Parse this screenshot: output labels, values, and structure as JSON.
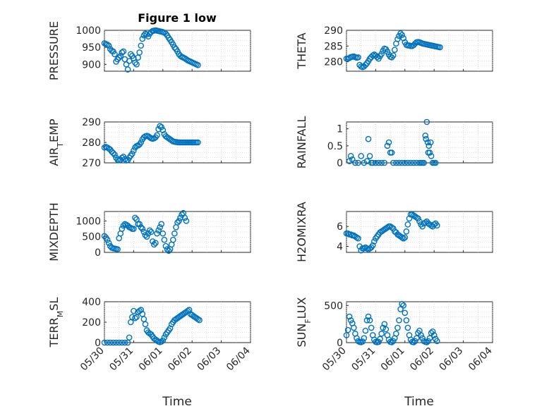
{
  "figure_title": "Figure 1 low",
  "accent_color": "#0072bd",
  "chart_data": [
    {
      "type": "scatter",
      "ylabel": "PRESSURE",
      "ylim": [
        880,
        1000
      ],
      "yticks": [
        900,
        950,
        1000
      ],
      "x": [
        0,
        0.05,
        0.1,
        0.15,
        0.2,
        0.25,
        0.3,
        0.35,
        0.4,
        0.45,
        0.5,
        0.55,
        0.6,
        0.65,
        0.7,
        0.75,
        0.8,
        0.85,
        0.9,
        0.95,
        1,
        1.05,
        1.1,
        1.15,
        1.2,
        1.25,
        1.3,
        1.35,
        1.4,
        1.45,
        1.5,
        1.55,
        1.6,
        1.65,
        1.7,
        1.75,
        1.8,
        1.85,
        1.9,
        1.95,
        2,
        2.05,
        2.1,
        2.15,
        2.2,
        2.25,
        2.3,
        2.35,
        2.4,
        2.45,
        2.5,
        2.55,
        2.6,
        2.65,
        2.7,
        2.75,
        2.8,
        2.85,
        2.9,
        2.95,
        3,
        3.05,
        3.1,
        3.15,
        3.2
      ],
      "y": [
        962,
        960,
        958,
        955,
        945,
        940,
        938,
        930,
        908,
        915,
        920,
        925,
        935,
        938,
        915,
        900,
        885,
        910,
        930,
        925,
        918,
        905,
        900,
        920,
        935,
        955,
        975,
        985,
        990,
        988,
        982,
        990,
        995,
        998,
        999,
        1000,
        999,
        998,
        997,
        996,
        995,
        993,
        990,
        985,
        978,
        972,
        965,
        958,
        950,
        945,
        938,
        930,
        925,
        922,
        920,
        918,
        915,
        912,
        910,
        908,
        906,
        904,
        902,
        900,
        898
      ]
    },
    {
      "type": "scatter",
      "ylabel": "THETA",
      "ylim": [
        277,
        290
      ],
      "yticks": [
        280,
        285,
        290
      ],
      "x": [
        0,
        0.05,
        0.1,
        0.15,
        0.2,
        0.25,
        0.3,
        0.35,
        0.4,
        0.45,
        0.5,
        0.55,
        0.6,
        0.65,
        0.7,
        0.75,
        0.8,
        0.85,
        0.9,
        0.95,
        1,
        1.05,
        1.1,
        1.15,
        1.2,
        1.25,
        1.3,
        1.35,
        1.4,
        1.45,
        1.5,
        1.55,
        1.6,
        1.65,
        1.7,
        1.75,
        1.8,
        1.85,
        1.9,
        1.95,
        2,
        2.05,
        2.1,
        2.15,
        2.2,
        2.25,
        2.3,
        2.35,
        2.4,
        2.45,
        2.5,
        2.55,
        2.6,
        2.65,
        2.7,
        2.75,
        2.8,
        2.85,
        2.9,
        2.95,
        3,
        3.05,
        3.1,
        3.15,
        3.2
      ],
      "y": [
        281,
        281,
        281.2,
        281.5,
        281.6,
        281.7,
        281.5,
        281.3,
        281.4,
        279,
        278.5,
        278.3,
        278.5,
        279,
        279.5,
        280.2,
        281,
        281.5,
        282,
        282.3,
        282,
        281.5,
        281,
        281.8,
        282.5,
        283.5,
        284.2,
        284,
        283.2,
        282.3,
        281.6,
        281.4,
        282,
        283.8,
        285.8,
        287.2,
        288.2,
        289,
        288.5,
        287.5,
        286.2,
        285.4,
        285.2,
        285.2,
        285,
        285,
        285.3,
        285.8,
        286.2,
        286.3,
        286.2,
        286,
        285.8,
        285.7,
        285.6,
        285.5,
        285.4,
        285.3,
        285.2,
        285.1,
        285,
        284.9,
        284.8,
        284.7,
        284.6
      ]
    },
    {
      "type": "scatter",
      "ylabel": "AIR_TEMP",
      "ylim": [
        270,
        290
      ],
      "yticks": [
        270,
        280,
        290
      ],
      "x": [
        0,
        0.05,
        0.1,
        0.15,
        0.2,
        0.25,
        0.3,
        0.35,
        0.4,
        0.45,
        0.5,
        0.55,
        0.6,
        0.65,
        0.7,
        0.75,
        0.8,
        0.85,
        0.9,
        0.95,
        1,
        1.05,
        1.1,
        1.15,
        1.2,
        1.25,
        1.3,
        1.35,
        1.4,
        1.45,
        1.5,
        1.55,
        1.6,
        1.65,
        1.7,
        1.75,
        1.8,
        1.85,
        1.9,
        1.95,
        2,
        2.05,
        2.1,
        2.15,
        2.2,
        2.25,
        2.3,
        2.35,
        2.4,
        2.45,
        2.5,
        2.55,
        2.6,
        2.65,
        2.7,
        2.75,
        2.8,
        2.85,
        2.9,
        2.95,
        3,
        3.05,
        3.1,
        3.15,
        3.2
      ],
      "y": [
        277.5,
        277.8,
        277.5,
        277,
        276.5,
        275.5,
        274.8,
        274,
        272.5,
        271.5,
        271.3,
        271.5,
        272.5,
        273,
        271.8,
        271.2,
        271.3,
        272.5,
        273.5,
        274.5,
        276,
        277.5,
        278.2,
        278.5,
        279,
        280,
        281.5,
        282.5,
        283,
        283.2,
        283,
        282.5,
        282,
        281.8,
        282,
        282.5,
        283.5,
        286.5,
        288,
        287.5,
        286,
        284,
        283,
        282.5,
        282,
        281.5,
        281,
        280.5,
        280.3,
        280.2,
        280.1,
        280,
        280,
        280,
        280,
        280,
        280,
        280,
        280,
        280,
        280,
        280,
        280,
        280,
        280
      ]
    },
    {
      "type": "scatter",
      "ylabel": "RAINFALL",
      "ylim": [
        0,
        1.2
      ],
      "yticks": [
        0,
        0.5,
        1
      ],
      "x": [
        0.1,
        0.15,
        0.2,
        0.3,
        0.4,
        0.5,
        0.6,
        0.7,
        0.75,
        0.8,
        0.85,
        0.9,
        1,
        1.1,
        1.2,
        1.3,
        1.4,
        1.45,
        1.5,
        1.55,
        1.6,
        1.7,
        1.8,
        1.9,
        2,
        2.1,
        2.2,
        2.3,
        2.4,
        2.5,
        2.55,
        2.6,
        2.65,
        2.7,
        2.72,
        2.75,
        2.78,
        2.8,
        2.82,
        2.85,
        2.88,
        2.9,
        2.95,
        3,
        3.05
      ],
      "y": [
        0.05,
        0.2,
        0.1,
        0,
        0,
        0.2,
        0,
        0.05,
        0.7,
        0.2,
        0,
        0,
        0,
        0,
        0,
        0,
        0.5,
        0.6,
        0.3,
        0.3,
        0,
        0,
        0,
        0,
        0,
        0,
        0,
        0,
        0,
        0,
        0,
        0,
        0,
        0.8,
        0.7,
        1.2,
        0.6,
        0.3,
        0.5,
        0.3,
        0.6,
        0.2,
        0,
        0,
        0
      ]
    },
    {
      "type": "scatter",
      "ylabel": "MIXDEPTH",
      "ylim": [
        0,
        1300
      ],
      "yticks": [
        0,
        500,
        1000
      ],
      "x": [
        0,
        0.05,
        0.1,
        0.15,
        0.2,
        0.25,
        0.3,
        0.35,
        0.4,
        0.45,
        0.5,
        0.55,
        0.6,
        0.65,
        0.7,
        0.75,
        0.8,
        0.85,
        0.9,
        0.95,
        1,
        1.05,
        1.1,
        1.15,
        1.2,
        1.25,
        1.3,
        1.35,
        1.4,
        1.45,
        1.5,
        1.55,
        1.6,
        1.65,
        1.7,
        1.75,
        1.8,
        1.85,
        1.9,
        1.95,
        2,
        2.05,
        2.1,
        2.15,
        2.2,
        2.25,
        2.3,
        2.35,
        2.4,
        2.45,
        2.5,
        2.55,
        2.6,
        2.65,
        2.7,
        2.75,
        2.8
      ],
      "y": [
        520,
        470,
        400,
        300,
        200,
        150,
        130,
        120,
        110,
        100,
        450,
        600,
        750,
        850,
        900,
        880,
        850,
        800,
        780,
        750,
        750,
        1100,
        1050,
        900,
        900,
        800,
        750,
        650,
        550,
        500,
        600,
        700,
        650,
        350,
        250,
        300,
        600,
        700,
        800,
        900,
        600,
        400,
        200,
        100,
        50,
        100,
        250,
        400,
        600,
        800,
        950,
        1000,
        1100,
        1200,
        1250,
        1100,
        1000
      ]
    },
    {
      "type": "scatter",
      "ylabel": "H2OMIXRA",
      "ylim": [
        3.4,
        7.5
      ],
      "yticks": [
        4,
        6
      ],
      "x": [
        0,
        0.05,
        0.1,
        0.15,
        0.2,
        0.25,
        0.3,
        0.35,
        0.4,
        0.45,
        0.5,
        0.55,
        0.6,
        0.65,
        0.7,
        0.75,
        0.8,
        0.85,
        0.9,
        0.95,
        1,
        1.05,
        1.1,
        1.15,
        1.2,
        1.25,
        1.3,
        1.35,
        1.4,
        1.45,
        1.5,
        1.55,
        1.6,
        1.65,
        1.7,
        1.75,
        1.8,
        1.85,
        1.9,
        1.95,
        2,
        2.05,
        2.1,
        2.15,
        2.2,
        2.25,
        2.3,
        2.35,
        2.4,
        2.45,
        2.5,
        2.55,
        2.6,
        2.65,
        2.7,
        2.75,
        2.8,
        2.85,
        2.9,
        2.95,
        3,
        3.05,
        3.1
      ],
      "y": [
        5.3,
        5.3,
        5.2,
        5.2,
        5.1,
        5.1,
        5,
        4.9,
        4.8,
        4,
        3.6,
        3.8,
        3.8,
        3.9,
        3.8,
        3.7,
        3.8,
        3.9,
        4.1,
        4.5,
        4.8,
        5,
        5.2,
        5.4,
        5.5,
        5.6,
        5.7,
        5.8,
        5.9,
        6,
        6,
        5.9,
        5.8,
        5.5,
        5.4,
        5.2,
        5.1,
        5,
        4.9,
        4.8,
        4.9,
        5.5,
        6.2,
        6.8,
        7.2,
        7.2,
        7.1,
        7,
        6.9,
        6.8,
        6.5,
        6.2,
        6,
        6.3,
        6.4,
        6.5,
        6.3,
        6.2,
        6.1,
        6,
        6.2,
        6.3,
        6.1
      ]
    },
    {
      "type": "scatter",
      "ylabel": "TERR_MSL",
      "ylim": [
        0,
        400
      ],
      "yticks": [
        0,
        200,
        400
      ],
      "x": [
        0,
        0.1,
        0.2,
        0.3,
        0.4,
        0.5,
        0.6,
        0.7,
        0.8,
        0.85,
        0.9,
        0.95,
        1,
        1.05,
        1.1,
        1.15,
        1.2,
        1.25,
        1.3,
        1.35,
        1.4,
        1.45,
        1.5,
        1.55,
        1.6,
        1.65,
        1.7,
        1.75,
        1.8,
        1.85,
        1.9,
        1.95,
        2,
        2.05,
        2.1,
        2.15,
        2.2,
        2.25,
        2.3,
        2.35,
        2.4,
        2.45,
        2.5,
        2.55,
        2.6,
        2.65,
        2.7,
        2.75,
        2.8,
        2.85,
        2.9,
        2.95,
        3,
        3.05,
        3.1,
        3.15,
        3.2,
        3.25
      ],
      "y": [
        0,
        0,
        0,
        0,
        0,
        0,
        0,
        0,
        0,
        50,
        200,
        250,
        310,
        240,
        250,
        300,
        310,
        320,
        280,
        230,
        180,
        120,
        100,
        90,
        80,
        60,
        40,
        30,
        20,
        10,
        5,
        10,
        20,
        50,
        80,
        100,
        120,
        140,
        180,
        200,
        220,
        230,
        240,
        250,
        260,
        270,
        280,
        290,
        300,
        310,
        320,
        280,
        270,
        260,
        250,
        240,
        230,
        220
      ]
    },
    {
      "type": "scatter",
      "ylabel": "SUN_FLUX",
      "ylim": [
        0,
        550
      ],
      "yticks": [
        0,
        500
      ],
      "x": [
        0,
        0.05,
        0.1,
        0.15,
        0.2,
        0.25,
        0.3,
        0.35,
        0.4,
        0.45,
        0.5,
        0.55,
        0.6,
        0.65,
        0.7,
        0.75,
        0.8,
        0.85,
        0.9,
        0.95,
        1,
        1.05,
        1.1,
        1.15,
        1.2,
        1.25,
        1.3,
        1.35,
        1.4,
        1.45,
        1.5,
        1.55,
        1.6,
        1.65,
        1.7,
        1.75,
        1.8,
        1.85,
        1.9,
        1.95,
        2,
        2.05,
        2.1,
        2.15,
        2.2,
        2.25,
        2.3,
        2.35,
        2.4,
        2.45,
        2.5,
        2.55,
        2.6,
        2.65,
        2.7,
        2.75,
        2.8,
        2.85,
        2.9,
        2.95,
        3,
        3.05,
        3.1
      ],
      "y": [
        100,
        170,
        350,
        300,
        260,
        200,
        120,
        60,
        20,
        10,
        5,
        15,
        60,
        160,
        300,
        350,
        300,
        200,
        100,
        40,
        10,
        5,
        10,
        50,
        120,
        200,
        250,
        180,
        100,
        40,
        10,
        5,
        20,
        60,
        120,
        200,
        300,
        450,
        520,
        500,
        400,
        300,
        200,
        100,
        40,
        10,
        5,
        20,
        60,
        130,
        160,
        100,
        60,
        20,
        10,
        5,
        20,
        60,
        130,
        150,
        100,
        50,
        20
      ]
    }
  ],
  "x_axis": {
    "label": "Time",
    "tick_labels": [
      "05/30",
      "05/31",
      "06/01",
      "06/02",
      "06/03",
      "06/04"
    ]
  }
}
